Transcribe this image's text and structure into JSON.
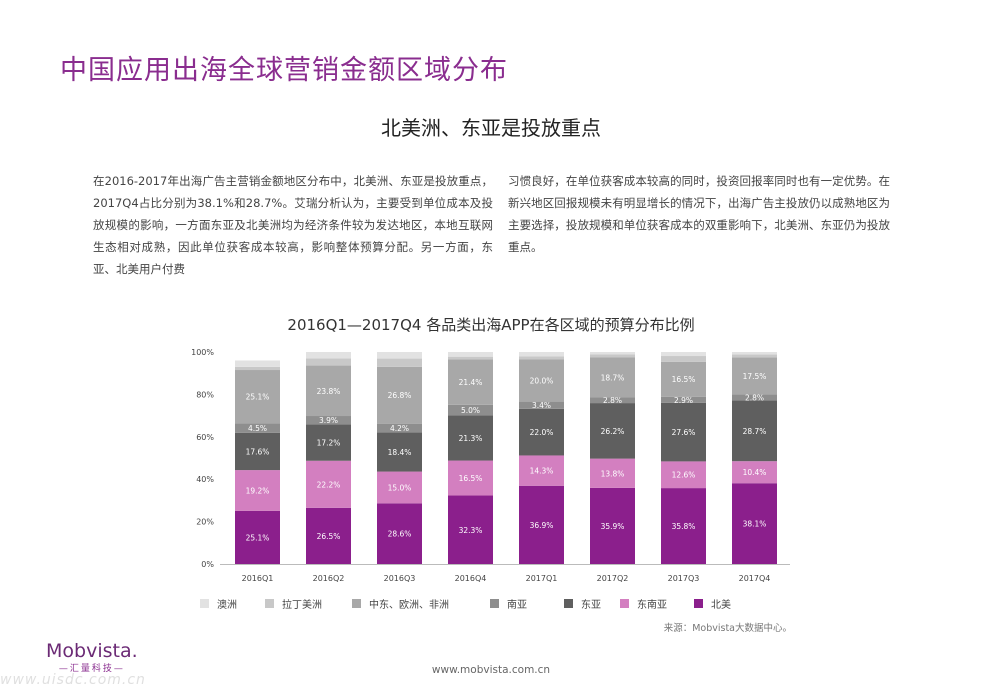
{
  "page": {
    "title": "中国应用出海全球营销金额区域分布",
    "subtitle": "北美洲、东亚是投放重点",
    "paragraph_left": "在2016-2017年出海广告主营销金额地区分布中，北美洲、东亚是投放重点，2017Q4占比分别为38.1%和28.7%。艾瑞分析认为，主要受到单位成本及投放规模的影响，一方面东亚及北美洲均为经济条件较为发达地区，本地互联网生态相对成熟，因此单位获客成本较高，影响整体预算分配。另一方面，东亚、北美用户付费",
    "paragraph_right": "习惯良好，在单位获客成本较高的同时，投资回报率同时也有一定优势。在新兴地区回报规模未有明显增长的情况下，出海广告主投放仍以成熟地区为主要选择，投放规模和单位获客成本的双重影响下，北美洲、东亚仍为投放重点。",
    "source": "来源：Mobvista大数据中心。",
    "logo_main": "Mobvista.",
    "logo_sub": "—汇量科技—",
    "footer_url": "www.mobvista.com.cn",
    "watermark": "www.uisdc.com.cn"
  },
  "chart_data": {
    "type": "bar",
    "stacked": true,
    "title": "2016Q1—2017Q4 各品类出海APP在各区域的预算分布比例",
    "xlabel": "",
    "ylabel": "",
    "ylim": [
      0,
      100
    ],
    "y_ticks": [
      "0%",
      "20%",
      "40%",
      "60%",
      "80%",
      "100%"
    ],
    "categories": [
      "2016Q1",
      "2016Q2",
      "2016Q3",
      "2016Q4",
      "2017Q1",
      "2017Q2",
      "2017Q3",
      "2017Q4"
    ],
    "legend_placement": "bottom",
    "series": [
      {
        "name": "北美",
        "color": "#8b1f8c",
        "values": [
          25.1,
          26.5,
          28.6,
          32.3,
          36.9,
          35.9,
          35.8,
          38.1
        ],
        "labels": [
          "25.1%",
          "26.5%",
          "28.6%",
          "32.3%",
          "36.9%",
          "35.9%",
          "35.8%",
          "38.1%"
        ]
      },
      {
        "name": "东南亚",
        "color": "#d37fc0",
        "values": [
          19.2,
          22.2,
          15.0,
          16.5,
          14.3,
          13.8,
          12.6,
          10.4
        ],
        "labels": [
          "19.2%",
          "22.2%",
          "15.0%",
          "16.5%",
          "14.3%",
          "13.8%",
          "12.6%",
          "10.4%"
        ]
      },
      {
        "name": "东亚",
        "color": "#5f5f5f",
        "values": [
          17.6,
          17.2,
          18.4,
          21.3,
          22.0,
          26.2,
          27.6,
          28.7
        ],
        "labels": [
          "17.6%",
          "17.2%",
          "18.4%",
          "21.3%",
          "22.0%",
          "26.2%",
          "27.6%",
          "28.7%"
        ]
      },
      {
        "name": "南亚",
        "color": "#8e8e8e",
        "values": [
          4.5,
          3.9,
          4.2,
          5.0,
          3.4,
          2.8,
          2.9,
          2.8
        ],
        "labels": [
          "4.5%",
          "3.9%",
          "4.2%",
          "5.0%",
          "3.4%",
          "2.8%",
          "2.9%",
          "2.8%"
        ]
      },
      {
        "name": "中东、欧洲、非洲",
        "color": "#a8a8a8",
        "values": [
          25.1,
          23.8,
          26.8,
          21.4,
          20.0,
          18.7,
          16.5,
          17.5
        ],
        "labels": [
          "25.1%",
          "23.8%",
          "26.8%",
          "21.4%",
          "20.0%",
          "18.7%",
          "16.5%",
          "17.5%"
        ]
      },
      {
        "name": "拉丁美洲",
        "color": "#c8c8c8",
        "values": [
          1.5,
          3.4,
          3.9,
          1.3,
          1.3,
          1.5,
          2.7,
          1.3
        ],
        "labels": [
          "",
          "",
          "",
          "",
          "",
          "",
          "",
          ""
        ]
      },
      {
        "name": "澳洲",
        "color": "#e2e2e2",
        "values": [
          3.0,
          3.0,
          3.1,
          2.2,
          2.1,
          1.1,
          1.9,
          1.2
        ],
        "labels": [
          "",
          "",
          "",
          "",
          "",
          "",
          "",
          ""
        ]
      }
    ],
    "legend_order": [
      "澳洲",
      "拉丁美洲",
      "中东、欧洲、非洲",
      "南亚",
      "东亚",
      "东南亚",
      "北美"
    ]
  }
}
